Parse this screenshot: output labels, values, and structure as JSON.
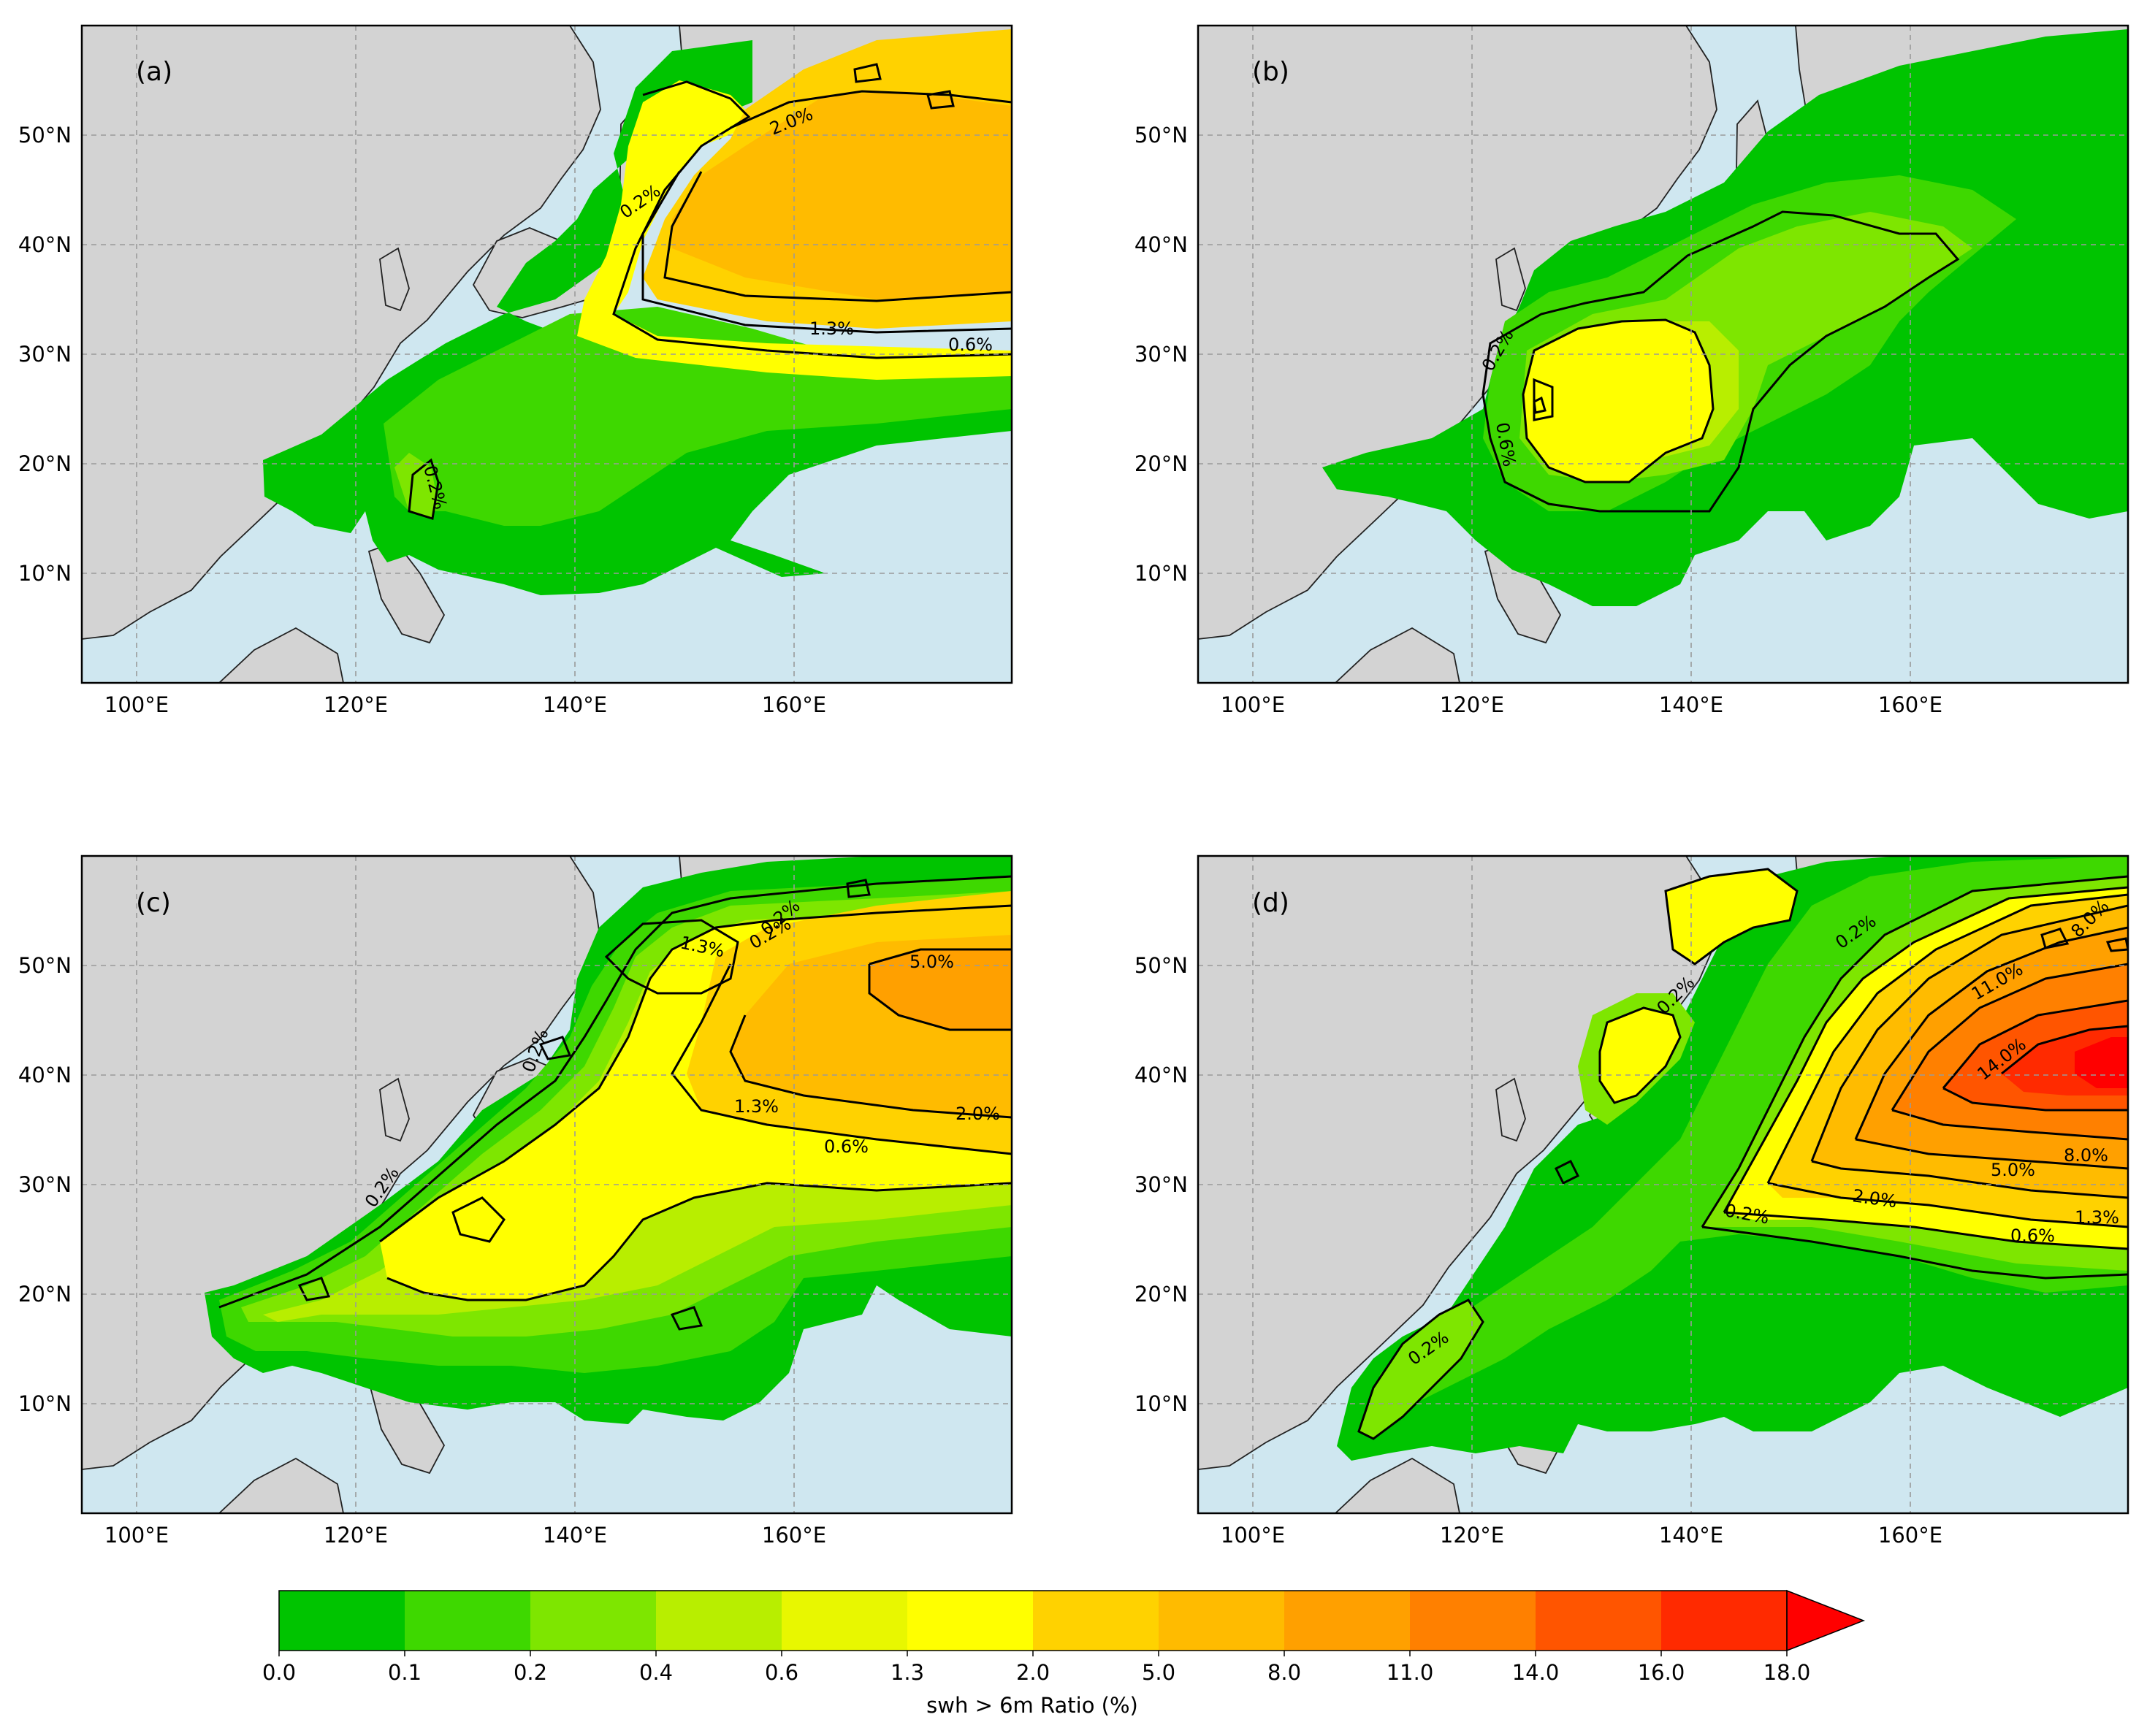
{
  "panels": [
    {
      "id": "a",
      "label": "(a)"
    },
    {
      "id": "b",
      "label": "(b)"
    },
    {
      "id": "c",
      "label": "(c)"
    },
    {
      "id": "d",
      "label": "(d)"
    }
  ],
  "axes": {
    "x_ticks": [
      "100°E",
      "120°E",
      "140°E",
      "160°E"
    ],
    "y_ticks": [
      "10°N",
      "20°N",
      "30°N",
      "40°N",
      "50°N"
    ],
    "lon_range": [
      95,
      180
    ],
    "lat_range": [
      0,
      60
    ]
  },
  "contour_labels": {
    "a": [
      "2.0%",
      "0.2%",
      "1.3%",
      "0.6%",
      "0.2%"
    ],
    "b": [
      "0.2%",
      "0.6%"
    ],
    "c": [
      "1.3%",
      "0.2%",
      "5.0%",
      "1.3%",
      "2.0%",
      "0.6%",
      "0.2%",
      "0.2%",
      "0.2%"
    ],
    "d": [
      "0.2%",
      "8.0%",
      "11.0%",
      "14.0%",
      "0.2%",
      "8.0%",
      "5.0%",
      "2.0%",
      "0.2%",
      "1.3%",
      "0.6%",
      "0.2%"
    ]
  },
  "colorbar": {
    "label": "swh > 6m Ratio (%)",
    "ticks": [
      "0.0",
      "0.1",
      "0.2",
      "0.4",
      "0.6",
      "1.3",
      "2.0",
      "5.0",
      "8.0",
      "11.0",
      "14.0",
      "16.0",
      "18.0"
    ],
    "colors": [
      "#00c400",
      "#3ed800",
      "#7ee600",
      "#b8ee00",
      "#e8f700",
      "#ffff00",
      "#ffd200",
      "#ffbb00",
      "#ffa000",
      "#ff8000",
      "#ff5500",
      "#ff2a00",
      "#ff0000"
    ],
    "extend": "max"
  },
  "palette": {
    "ocean": "#cfe7f0",
    "land": "#d3d3d3"
  }
}
